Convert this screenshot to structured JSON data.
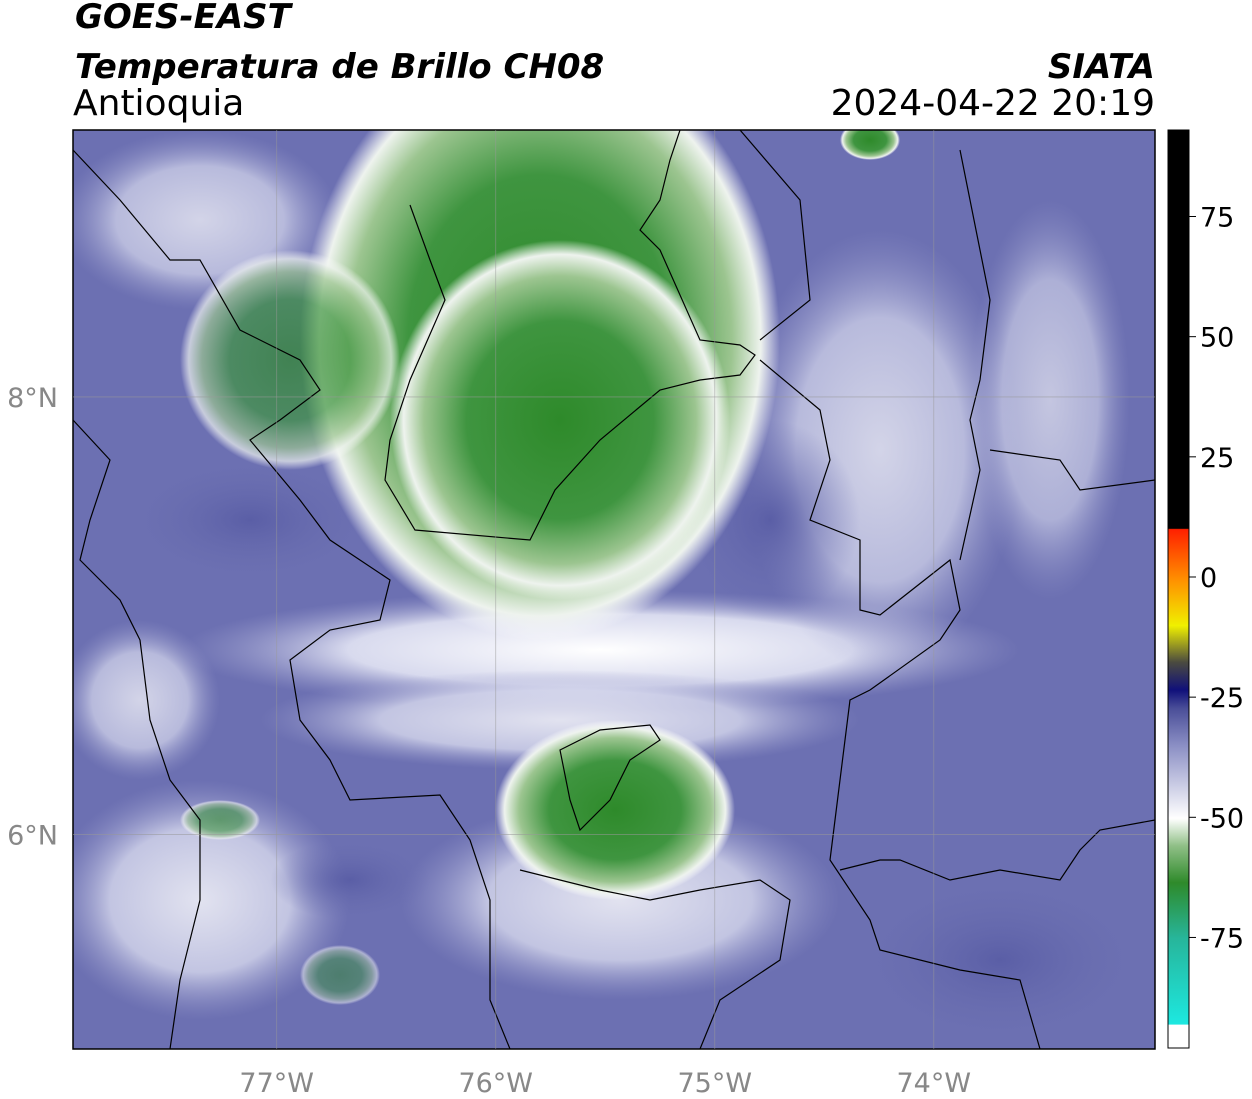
{
  "header": {
    "title": "GOES-EAST",
    "subtitle": "Temperatura de Brillo CH08",
    "region": "Antioquia",
    "source": "SIATA",
    "datetime": "2024-04-22 20:19"
  },
  "map": {
    "xlim": [
      -77.93,
      -72.99
    ],
    "ylim": [
      5.02,
      9.22
    ],
    "xticks": [
      {
        "value": -77,
        "label": "77°W"
      },
      {
        "value": -76,
        "label": "76°W"
      },
      {
        "value": -75,
        "label": "75°W"
      },
      {
        "value": -74,
        "label": "74°W"
      }
    ],
    "yticks": [
      {
        "value": 6,
        "label": "6°N"
      },
      {
        "value": 8,
        "label": "8°N"
      }
    ]
  },
  "colorbar": {
    "lim": [
      -98,
      93
    ],
    "ticks": [
      -75,
      -50,
      -25,
      0,
      25,
      50,
      75
    ]
  }
}
